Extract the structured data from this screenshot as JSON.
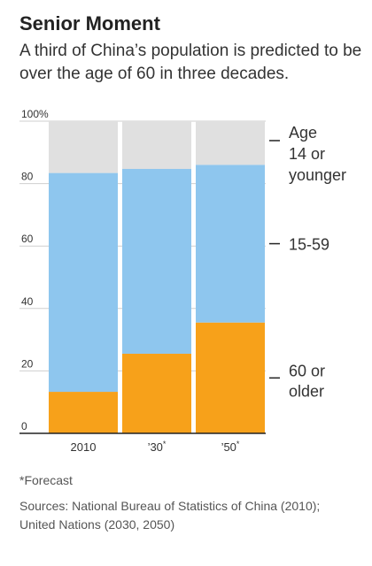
{
  "title": "Senior Moment",
  "subtitle": "A third of China’s population is predicted to be over the age of 60 in three decades.",
  "footnote": "*Forecast",
  "sources": "Sources: National Bureau of Statistics of China (2010); United Nations (2030, 2050)",
  "colors": {
    "age_14_or_younger": "#e0e0e0",
    "age_15_59": "#8ec6ee",
    "age_60_or_older": "#f7a11a",
    "grid": "#cfcfcf",
    "axis": "#222222"
  },
  "chart_data": {
    "type": "bar",
    "stacked": true,
    "categories": [
      "2010",
      "’30",
      "’50"
    ],
    "category_marks": [
      "",
      "*",
      "*"
    ],
    "y_tick_labels": [
      "0",
      "20",
      "40",
      "60",
      "80",
      "100%"
    ],
    "y_ticks": [
      0,
      20,
      40,
      60,
      80,
      100
    ],
    "ylim": [
      0,
      100
    ],
    "grid": true,
    "legend": "right",
    "series": [
      {
        "name": "60 or older",
        "values": [
          13.3,
          25.5,
          35.5
        ]
      },
      {
        "name": "15-59",
        "values": [
          70.1,
          59.2,
          50.5
        ]
      },
      {
        "name": "Age 14 or younger",
        "values": [
          16.6,
          15.3,
          14.0
        ]
      }
    ],
    "legend_lines": [
      [
        "60 or",
        "older"
      ],
      [
        "15-59"
      ],
      [
        "Age",
        "14 or",
        "younger"
      ]
    ]
  }
}
